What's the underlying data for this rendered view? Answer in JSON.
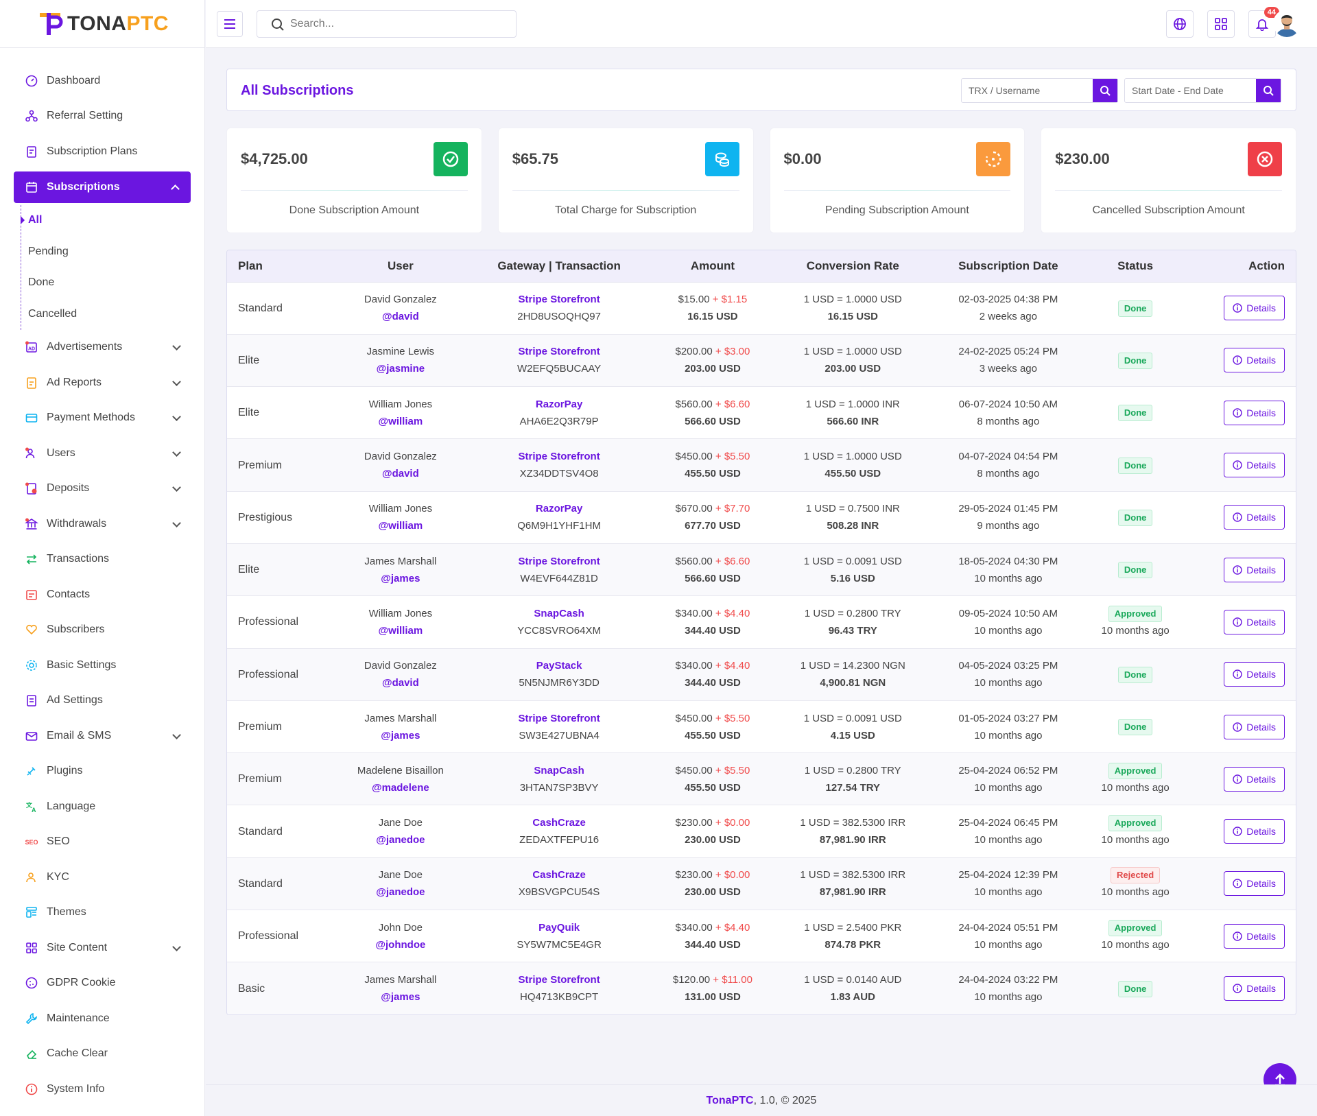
{
  "brand": {
    "logo_text_main": "TONA",
    "logo_text_accent": "PTC",
    "accent": "#6b16e0",
    "orange": "#f7a01d"
  },
  "topbar": {
    "search_placeholder": "Search...",
    "notification_count": "44"
  },
  "sidebar": {
    "items": [
      {
        "label": "Dashboard",
        "icon": "gauge-icon",
        "chevron": false
      },
      {
        "label": "Referral Setting",
        "icon": "network-icon",
        "chevron": false
      },
      {
        "label": "Subscription Plans",
        "icon": "clipboard-icon",
        "chevron": false
      },
      {
        "label": "Subscriptions",
        "icon": "calendar-refresh-icon",
        "chevron": true,
        "active": true
      },
      {
        "label": "Advertisements",
        "icon": "ad-icon",
        "chevron": true
      },
      {
        "label": "Ad Reports",
        "icon": "report-icon",
        "chevron": true
      },
      {
        "label": "Payment Methods",
        "icon": "credit-card-icon",
        "chevron": true
      },
      {
        "label": "Users",
        "icon": "users-icon",
        "chevron": true
      },
      {
        "label": "Deposits",
        "icon": "deposit-icon",
        "chevron": true
      },
      {
        "label": "Withdrawals",
        "icon": "bank-icon",
        "chevron": true
      },
      {
        "label": "Transactions",
        "icon": "arrows-exchange-icon",
        "chevron": false
      },
      {
        "label": "Contacts",
        "icon": "contacts-icon",
        "chevron": false
      },
      {
        "label": "Subscribers",
        "icon": "heart-hand-icon",
        "chevron": false
      },
      {
        "label": "Basic Settings",
        "icon": "gear-icon",
        "chevron": false
      },
      {
        "label": "Ad Settings",
        "icon": "ad-settings-icon",
        "chevron": false
      },
      {
        "label": "Email & SMS",
        "icon": "mail-icon",
        "chevron": true
      },
      {
        "label": "Plugins",
        "icon": "plug-icon",
        "chevron": false
      },
      {
        "label": "Language",
        "icon": "translate-icon",
        "chevron": false
      },
      {
        "label": "SEO",
        "icon": "seo-icon",
        "chevron": false
      },
      {
        "label": "KYC",
        "icon": "user-check-icon",
        "chevron": false
      },
      {
        "label": "Themes",
        "icon": "layout-icon",
        "chevron": false
      },
      {
        "label": "Site Content",
        "icon": "grid-icon",
        "chevron": true
      },
      {
        "label": "GDPR Cookie",
        "icon": "cookie-icon",
        "chevron": false
      },
      {
        "label": "Maintenance",
        "icon": "wrench-icon",
        "chevron": false
      },
      {
        "label": "Cache Clear",
        "icon": "eraser-icon",
        "chevron": false
      },
      {
        "label": "System Info",
        "icon": "info-icon",
        "chevron": false
      }
    ],
    "submenu": [
      "All",
      "Pending",
      "Done",
      "Cancelled"
    ]
  },
  "panel": {
    "title": "All Subscriptions",
    "trx_placeholder": "TRX / Username",
    "date_placeholder": "Start Date - End Date"
  },
  "cards": [
    {
      "amount": "$4,725.00",
      "label": "Done Subscription Amount",
      "color": "#15b35e",
      "icon": "check-circle-icon"
    },
    {
      "amount": "$65.75",
      "label": "Total Charge for Subscription",
      "color": "#0fb4f0",
      "icon": "coins-icon"
    },
    {
      "amount": "$0.00",
      "label": "Pending Subscription Amount",
      "color": "#fa9a3d",
      "icon": "spinner-icon"
    },
    {
      "amount": "$230.00",
      "label": "Cancelled Subscription Amount",
      "color": "#ef3f48",
      "icon": "x-circle-icon"
    }
  ],
  "table": {
    "headers": [
      "Plan",
      "User",
      "Gateway | Transaction",
      "Amount",
      "Conversion Rate",
      "Subscription Date",
      "Status",
      "Action"
    ],
    "details_label": "Details",
    "rows": [
      {
        "plan": "Standard",
        "user": "David Gonzalez",
        "handle": "@david",
        "gateway": "Stripe Storefront",
        "trx": "2HD8USOQHQ97",
        "amount": "$15.00",
        "plus": " + ",
        "charge": "$1.15",
        "total": "16.15 USD",
        "rate": "1 USD = 1.0000 USD",
        "converted": "16.15 USD",
        "date": "02-03-2025 04:38 PM",
        "ago": "2 weeks ago",
        "status": "Done",
        "status_ago": ""
      },
      {
        "plan": "Elite",
        "user": "Jasmine Lewis",
        "handle": "@jasmine",
        "gateway": "Stripe Storefront",
        "trx": "W2EFQ5BUCAAY",
        "amount": "$200.00",
        "plus": " + ",
        "charge": "$3.00",
        "total": "203.00 USD",
        "rate": "1 USD = 1.0000 USD",
        "converted": "203.00 USD",
        "date": "24-02-2025 05:24 PM",
        "ago": "3 weeks ago",
        "status": "Done",
        "status_ago": ""
      },
      {
        "plan": "Elite",
        "user": "William Jones",
        "handle": "@william",
        "gateway": "RazorPay",
        "trx": "AHA6E2Q3R79P",
        "amount": "$560.00",
        "plus": " + ",
        "charge": "$6.60",
        "total": "566.60 USD",
        "rate": "1 USD = 1.0000 INR",
        "converted": "566.60 INR",
        "date": "06-07-2024 10:50 AM",
        "ago": "8 months ago",
        "status": "Done",
        "status_ago": ""
      },
      {
        "plan": "Premium",
        "user": "David Gonzalez",
        "handle": "@david",
        "gateway": "Stripe Storefront",
        "trx": "XZ34DDTSV4O8",
        "amount": "$450.00",
        "plus": " + ",
        "charge": "$5.50",
        "total": "455.50 USD",
        "rate": "1 USD = 1.0000 USD",
        "converted": "455.50 USD",
        "date": "04-07-2024 04:54 PM",
        "ago": "8 months ago",
        "status": "Done",
        "status_ago": ""
      },
      {
        "plan": "Prestigious",
        "user": "William Jones",
        "handle": "@william",
        "gateway": "RazorPay",
        "trx": "Q6M9H1YHF1HM",
        "amount": "$670.00",
        "plus": " + ",
        "charge": "$7.70",
        "total": "677.70 USD",
        "rate": "1 USD = 0.7500 INR",
        "converted": "508.28 INR",
        "date": "29-05-2024 01:45 PM",
        "ago": "9 months ago",
        "status": "Done",
        "status_ago": ""
      },
      {
        "plan": "Elite",
        "user": "James Marshall",
        "handle": "@james",
        "gateway": "Stripe Storefront",
        "trx": "W4EVF644Z81D",
        "amount": "$560.00",
        "plus": " + ",
        "charge": "$6.60",
        "total": "566.60 USD",
        "rate": "1 USD = 0.0091 USD",
        "converted": "5.16 USD",
        "date": "18-05-2024 04:30 PM",
        "ago": "10 months ago",
        "status": "Done",
        "status_ago": ""
      },
      {
        "plan": "Professional",
        "user": "William Jones",
        "handle": "@william",
        "gateway": "SnapCash",
        "trx": "YCC8SVRO64XM",
        "amount": "$340.00",
        "plus": " + ",
        "charge": "$4.40",
        "total": "344.40 USD",
        "rate": "1 USD = 0.2800 TRY",
        "converted": "96.43 TRY",
        "date": "09-05-2024 10:50 AM",
        "ago": "10 months ago",
        "status": "Approved",
        "status_ago": "10 months ago"
      },
      {
        "plan": "Professional",
        "user": "David Gonzalez",
        "handle": "@david",
        "gateway": "PayStack",
        "trx": "5N5NJMR6Y3DD",
        "amount": "$340.00",
        "plus": " + ",
        "charge": "$4.40",
        "total": "344.40 USD",
        "rate": "1 USD = 14.2300 NGN",
        "converted": "4,900.81 NGN",
        "date": "04-05-2024 03:25 PM",
        "ago": "10 months ago",
        "status": "Done",
        "status_ago": ""
      },
      {
        "plan": "Premium",
        "user": "James Marshall",
        "handle": "@james",
        "gateway": "Stripe Storefront",
        "trx": "SW3E427UBNA4",
        "amount": "$450.00",
        "plus": " + ",
        "charge": "$5.50",
        "total": "455.50 USD",
        "rate": "1 USD = 0.0091 USD",
        "converted": "4.15 USD",
        "date": "01-05-2024 03:27 PM",
        "ago": "10 months ago",
        "status": "Done",
        "status_ago": ""
      },
      {
        "plan": "Premium",
        "user": "Madelene Bisaillon",
        "handle": "@madelene",
        "gateway": "SnapCash",
        "trx": "3HTAN7SP3BVY",
        "amount": "$450.00",
        "plus": " + ",
        "charge": "$5.50",
        "total": "455.50 USD",
        "rate": "1 USD = 0.2800 TRY",
        "converted": "127.54 TRY",
        "date": "25-04-2024 06:52 PM",
        "ago": "10 months ago",
        "status": "Approved",
        "status_ago": "10 months ago"
      },
      {
        "plan": "Standard",
        "user": "Jane Doe",
        "handle": "@janedoe",
        "gateway": "CashCraze",
        "trx": "ZEDAXTFEPU16",
        "amount": "$230.00",
        "plus": " + ",
        "charge": "$0.00",
        "total": "230.00 USD",
        "rate": "1 USD = 382.5300 IRR",
        "converted": "87,981.90 IRR",
        "date": "25-04-2024 06:45 PM",
        "ago": "10 months ago",
        "status": "Approved",
        "status_ago": "10 months ago"
      },
      {
        "plan": "Standard",
        "user": "Jane Doe",
        "handle": "@janedoe",
        "gateway": "CashCraze",
        "trx": "X9BSVGPCU54S",
        "amount": "$230.00",
        "plus": " + ",
        "charge": "$0.00",
        "total": "230.00 USD",
        "rate": "1 USD = 382.5300 IRR",
        "converted": "87,981.90 IRR",
        "date": "25-04-2024 12:39 PM",
        "ago": "10 months ago",
        "status": "Rejected",
        "status_ago": "10 months ago"
      },
      {
        "plan": "Professional",
        "user": "John Doe",
        "handle": "@johndoe",
        "gateway": "PayQuik",
        "trx": "SY5W7MC5E4GR",
        "amount": "$340.00",
        "plus": " + ",
        "charge": "$4.40",
        "total": "344.40 USD",
        "rate": "1 USD = 2.5400 PKR",
        "converted": "874.78 PKR",
        "date": "24-04-2024 05:51 PM",
        "ago": "10 months ago",
        "status": "Approved",
        "status_ago": "10 months ago"
      },
      {
        "plan": "Basic",
        "user": "James Marshall",
        "handle": "@james",
        "gateway": "Stripe Storefront",
        "trx": "HQ4713KB9CPT",
        "amount": "$120.00",
        "plus": " + ",
        "charge": "$11.00",
        "total": "131.00 USD",
        "rate": "1 USD = 0.0140 AUD",
        "converted": "1.83 AUD",
        "date": "24-04-2024 03:22 PM",
        "ago": "10 months ago",
        "status": "Done",
        "status_ago": ""
      }
    ]
  },
  "footer": {
    "brand": "TonaPTC",
    "rest": ", 1.0, © 2025"
  }
}
